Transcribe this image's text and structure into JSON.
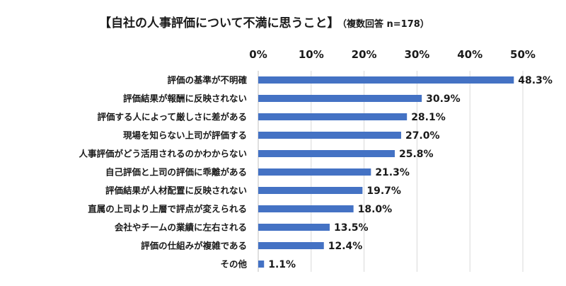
{
  "chart_data": {
    "type": "bar",
    "orientation": "horizontal",
    "title": "【自社の人事評価について不満に思うこと】",
    "subtitle": "（複数回答 n=178）",
    "categories": [
      "評価の基準が不明確",
      "評価結果が報酬に反映されない",
      "評価する人によって厳しさに差がある",
      "現場を知らない上司が評価する",
      "人事評価がどう活用されるのかわからない",
      "自己評価と上司の評価に乖離がある",
      "評価結果が人材配置に反映されない",
      "直属の上司より上層で評点が変えられる",
      "会社やチームの業績に左右される",
      "評価の仕組みが複雑である",
      "その他"
    ],
    "values": [
      48.3,
      30.9,
      28.1,
      27.0,
      25.8,
      21.3,
      19.7,
      18.0,
      13.5,
      12.4,
      1.1
    ],
    "value_labels": [
      "48.3%",
      "30.9%",
      "28.1%",
      "27.0%",
      "25.8%",
      "21.3%",
      "19.7%",
      "18.0%",
      "13.5%",
      "12.4%",
      "1.1%"
    ],
    "xticks": [
      0,
      10,
      20,
      30,
      40,
      50
    ],
    "xtick_labels": [
      "0%",
      "10%",
      "20%",
      "30%",
      "40%",
      "50%"
    ],
    "xlim": [
      0,
      50
    ],
    "xaxis_position": "top",
    "grid": true,
    "bar_color": "#4472C4"
  }
}
